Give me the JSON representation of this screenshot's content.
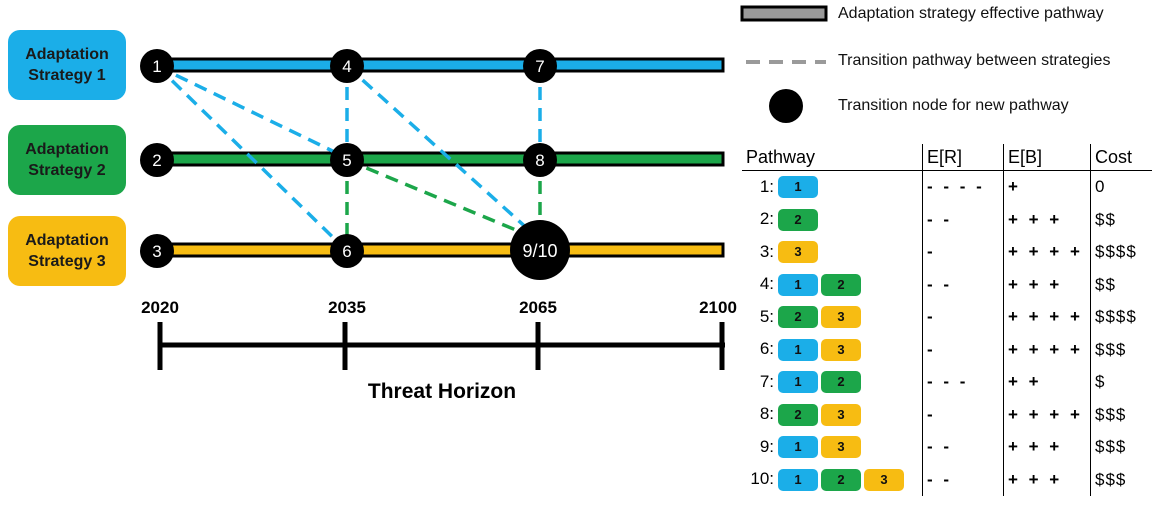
{
  "colors": {
    "s1": "#1BAEE8",
    "s2": "#1CA64A",
    "s3": "#F7BC12",
    "node": "#000000",
    "line_outline": "#000000"
  },
  "strategies": [
    {
      "label": "Adaptation\nStrategy 1",
      "color": "#1BAEE8"
    },
    {
      "label": "Adaptation\nStrategy 2",
      "color": "#1CA64A"
    },
    {
      "label": "Adaptation\nStrategy 3",
      "color": "#F7BC12"
    }
  ],
  "nodes": [
    "1",
    "4",
    "7",
    "2",
    "5",
    "8",
    "3",
    "6",
    "9/10"
  ],
  "timeline": {
    "years": [
      "2020",
      "2035",
      "2065",
      "2100"
    ],
    "label": "Threat Horizon"
  },
  "legend": {
    "effective": "Adaptation strategy effective pathway",
    "transition": "Transition pathway between strategies",
    "node": "Transition node for new pathway"
  },
  "table": {
    "headers": [
      "Pathway",
      "E[R]",
      "E[B]",
      "Cost"
    ],
    "rows": [
      {
        "num": "1:",
        "chips": [
          1
        ],
        "er": "- - - -",
        "eb": "+",
        "cost": "0"
      },
      {
        "num": "2:",
        "chips": [
          2
        ],
        "er": "- -",
        "eb": "+ + +",
        "cost": "$$"
      },
      {
        "num": "3:",
        "chips": [
          3
        ],
        "er": "-",
        "eb": "+ + + +",
        "cost": "$$$$"
      },
      {
        "num": "4:",
        "chips": [
          1,
          2
        ],
        "er": "- -",
        "eb": "+ + +",
        "cost": "$$"
      },
      {
        "num": "5:",
        "chips": [
          2,
          3
        ],
        "er": "-",
        "eb": "+ + + +",
        "cost": "$$$$"
      },
      {
        "num": "6:",
        "chips": [
          1,
          3
        ],
        "er": "-",
        "eb": "+ + + +",
        "cost": "$$$"
      },
      {
        "num": "7:",
        "chips": [
          1,
          2
        ],
        "er": "- - -",
        "eb": "+ +",
        "cost": "$"
      },
      {
        "num": "8:",
        "chips": [
          2,
          3
        ],
        "er": "-",
        "eb": "+ + + +",
        "cost": "$$$"
      },
      {
        "num": "9:",
        "chips": [
          1,
          3
        ],
        "er": "- -",
        "eb": "+ + +",
        "cost": "$$$"
      },
      {
        "num": "10:",
        "chips": [
          1,
          2,
          3
        ],
        "er": "- -",
        "eb": "+ + +",
        "cost": "$$$"
      }
    ]
  }
}
